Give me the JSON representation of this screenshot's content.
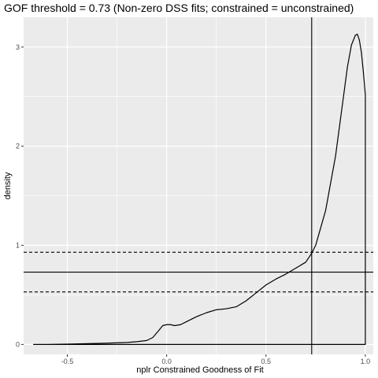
{
  "chart_data": {
    "type": "line",
    "title": "GOF threshold = 0.73 (Non-zero DSS fits; constrained = unconstrained)",
    "xlabel": "nplr Constrained Goodness of Fit",
    "ylabel": "density",
    "xlim": [
      -0.72,
      1.04
    ],
    "ylim": [
      -0.1,
      3.3
    ],
    "x_ticks": [
      -0.5,
      0.0,
      0.5,
      1.0
    ],
    "x_tick_labels": [
      "-0.5",
      "0.0",
      "0.5",
      "1.0"
    ],
    "y_ticks": [
      0,
      1,
      2,
      3
    ],
    "y_tick_labels": [
      "0",
      "1",
      "2",
      "3"
    ],
    "grid": true,
    "background": "#ebebeb",
    "grid_color": "#ffffff",
    "line_color": "#000000",
    "series": [
      {
        "x": [
          -0.67,
          -0.6,
          -0.5,
          -0.4,
          -0.3,
          -0.2,
          -0.15,
          -0.1,
          -0.07,
          -0.04,
          -0.02,
          0.0,
          0.02,
          0.04,
          0.07,
          0.1,
          0.15,
          0.2,
          0.25,
          0.3,
          0.35,
          0.4,
          0.45,
          0.5,
          0.55,
          0.6,
          0.65,
          0.7,
          0.73,
          0.75,
          0.8,
          0.85,
          0.88,
          0.91,
          0.93,
          0.95,
          0.96,
          0.97,
          0.98,
          0.99,
          1.0
        ],
        "y": [
          0.0,
          0.001,
          0.003,
          0.008,
          0.013,
          0.02,
          0.028,
          0.04,
          0.07,
          0.14,
          0.19,
          0.2,
          0.2,
          0.19,
          0.2,
          0.23,
          0.28,
          0.32,
          0.35,
          0.36,
          0.38,
          0.44,
          0.52,
          0.6,
          0.66,
          0.71,
          0.77,
          0.83,
          0.92,
          1.0,
          1.35,
          1.9,
          2.35,
          2.8,
          3.02,
          3.12,
          3.13,
          3.07,
          2.95,
          2.75,
          2.52
        ]
      }
    ],
    "vlines": [
      0.73
    ],
    "hlines": [
      {
        "y": 0.73,
        "style": "solid"
      },
      {
        "y": 0.93,
        "style": "dashed"
      },
      {
        "y": 0.53,
        "style": "dashed"
      }
    ]
  }
}
